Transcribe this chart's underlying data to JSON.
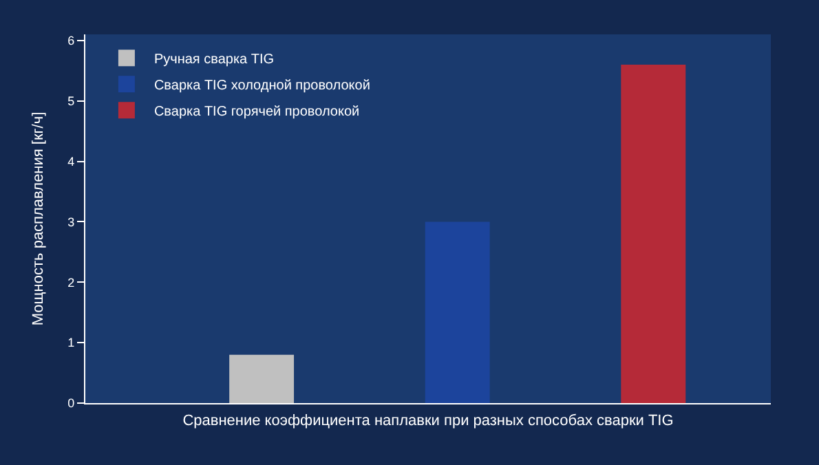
{
  "chart_data": {
    "type": "bar",
    "xlabel": "Сравнение коэффициента наплавки при разных способах сварки TIG",
    "ylabel": "Мощность расплавления [кг/ч]",
    "categories": [
      null,
      null,
      null
    ],
    "series": [
      {
        "name": "Ручная сварка TIG",
        "color": "#c0c0c0",
        "values": [
          0.8,
          null,
          null
        ]
      },
      {
        "name": "Сварка TIG холодной проволокой",
        "color": "#1c449c",
        "values": [
          null,
          3.0,
          null
        ]
      },
      {
        "name": "Сварка TIG горячей проволокой",
        "color": "#b52a38",
        "values": [
          null,
          null,
          5.6
        ]
      }
    ],
    "ylim": [
      0,
      6.1
    ],
    "yticks": [
      0,
      1,
      2,
      3,
      4,
      5,
      6
    ],
    "grid": false,
    "legend": "top left",
    "tick_labels": "y"
  }
}
